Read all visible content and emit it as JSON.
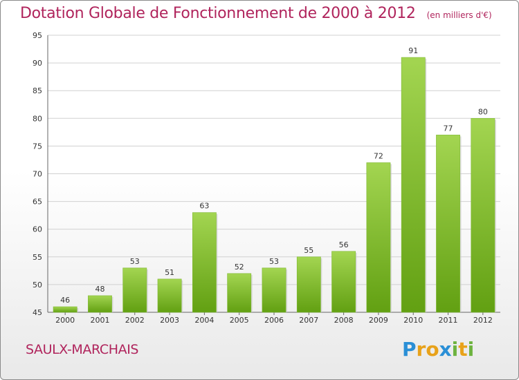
{
  "chart_data": {
    "type": "bar",
    "title": "Dotation Globale de Fonctionnement de 2000 à 2012",
    "subtitle": "(en milliers d'€)",
    "categories": [
      "2000",
      "2001",
      "2002",
      "2003",
      "2004",
      "2005",
      "2006",
      "2007",
      "2008",
      "2009",
      "2010",
      "2011",
      "2012"
    ],
    "values": [
      46,
      48,
      53,
      51,
      63,
      52,
      53,
      55,
      56,
      72,
      91,
      77,
      80
    ],
    "data_labels": [
      "46",
      "48",
      "53",
      "51",
      "63",
      "52",
      "53",
      "55",
      "56",
      "72",
      "91",
      "77",
      "80"
    ],
    "ylim": [
      45,
      95
    ],
    "yticks": [
      45,
      50,
      55,
      60,
      65,
      70,
      75,
      80,
      85,
      90,
      95
    ],
    "grid": true,
    "xlabel": "",
    "ylabel": ""
  },
  "colors": {
    "title": "#b0245c",
    "bar_top": "#a3d551",
    "bar_bottom": "#62a012",
    "grid": "#d0d0d0",
    "axis_text": "#333333"
  },
  "footer": {
    "commune": "SAULX-MARCHAIS"
  },
  "logo": {
    "text": "Proxiti",
    "letters": [
      "P",
      "r",
      "o",
      "x",
      "i",
      "t",
      "i"
    ],
    "letter_colors": [
      "#2a8fd6",
      "#e8a21a",
      "#e8a21a",
      "#2a8fd6",
      "#6db33f",
      "#e8a21a",
      "#6db33f"
    ]
  }
}
